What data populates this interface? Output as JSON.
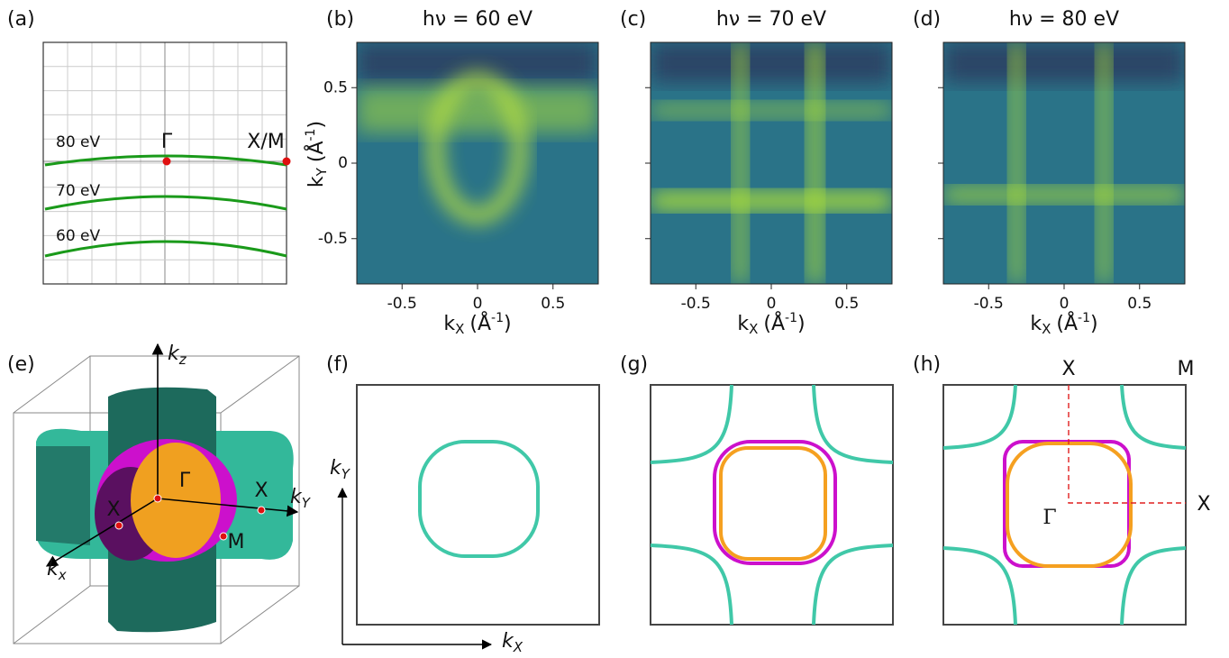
{
  "panels": {
    "a": {
      "label": "(a)",
      "curves": [
        "80 eV",
        "70 eV",
        "60 eV"
      ],
      "points": [
        "Γ",
        "X/M"
      ]
    },
    "b": {
      "label": "(b)",
      "title": "hν = 60 eV"
    },
    "c": {
      "label": "(c)",
      "title": "hν = 70 eV"
    },
    "d": {
      "label": "(d)",
      "title": "hν = 80 eV"
    },
    "e": {
      "label": "(e)",
      "kz": {
        "base": "k",
        "sub": "z"
      },
      "ky": {
        "base": "k",
        "sub": "Y"
      },
      "kx": {
        "base": "k",
        "sub": "x"
      },
      "points": [
        "Γ",
        "X",
        "X",
        "M"
      ]
    },
    "f": {
      "label": "(f)",
      "ky": {
        "base": "k",
        "sub": "Y"
      },
      "kx": {
        "base": "k",
        "sub": "X"
      }
    },
    "g": {
      "label": "(g)"
    },
    "h": {
      "label": "(h)",
      "points": [
        "X",
        "M",
        "X",
        "Γ"
      ]
    }
  },
  "maps": {
    "xlim": [
      -0.8,
      0.8
    ],
    "ylim": [
      -0.8,
      0.8
    ],
    "xticks": [
      -0.5,
      0,
      0.5
    ],
    "yticks": [
      -0.5,
      0,
      0.5
    ],
    "x_label": {
      "k": "k",
      "sub": "X",
      "unit": "(Å",
      "sup": "-1",
      "end": ")"
    },
    "y_label": {
      "k": "k",
      "sub": "Y",
      "unit": "(Å",
      "sup": "-1",
      "end": ")"
    }
  }
}
